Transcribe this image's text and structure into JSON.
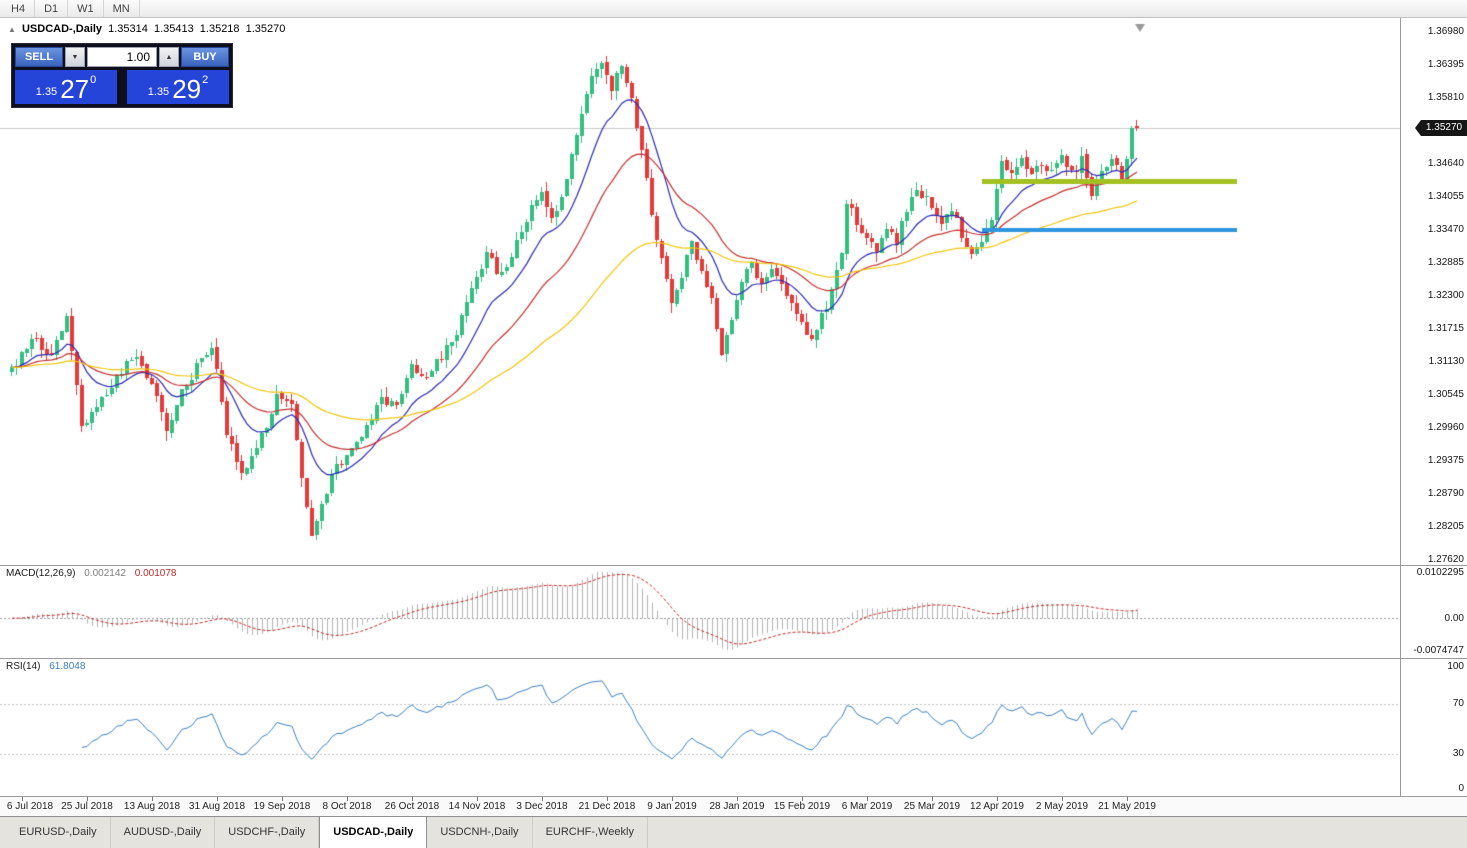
{
  "window": {
    "toolbar_timeframes": [
      "H4",
      "D1",
      "W1",
      "MN"
    ],
    "chart_title": {
      "direction_glyph": "▲",
      "symbol": "USDCAD-,Daily",
      "open": "1.35314",
      "high": "1.35413",
      "low": "1.35218",
      "close": "1.35270"
    },
    "trade_panel": {
      "sell_label": "SELL",
      "buy_label": "BUY",
      "volume": "1.00",
      "volume_down_glyph": "▼",
      "volume_up_glyph": "▲",
      "sell_price": {
        "small": "1.35",
        "big": "27",
        "sup": "0"
      },
      "buy_price": {
        "small": "1.35",
        "big": "29",
        "sup": "2"
      }
    },
    "tabs": [
      {
        "label": "EURUSD-,Daily",
        "active": false
      },
      {
        "label": "AUDUSD-,Daily",
        "active": false
      },
      {
        "label": "USDCHF-,Daily",
        "active": false
      },
      {
        "label": "USDCAD-,Daily",
        "active": true
      },
      {
        "label": "USDCNH-,Daily",
        "active": false
      },
      {
        "label": "EURCHF-,Weekly",
        "active": false
      }
    ]
  },
  "chart_data": {
    "type": "candlestick",
    "symbol": "USDCAD-",
    "timeframe": "Daily",
    "price_axis": {
      "labels": [
        "1.36980",
        "1.36395",
        "1.35810",
        "1.35225",
        "1.34640",
        "1.34055",
        "1.33470",
        "1.32885",
        "1.32300",
        "1.31715",
        "1.31130",
        "1.30545",
        "1.29960",
        "1.29375",
        "1.28790",
        "1.28205",
        "1.27620"
      ],
      "top_value": 1.3698,
      "step": 0.00585,
      "current_price": "1.35270"
    },
    "x_axis_dates": [
      "6 Jul 2018",
      "25 Jul 2018",
      "13 Aug 2018",
      "31 Aug 2018",
      "19 Sep 2018",
      "8 Oct 2018",
      "26 Oct 2018",
      "14 Nov 2018",
      "3 Dec 2018",
      "21 Dec 2018",
      "9 Jan 2019",
      "28 Jan 2019",
      "15 Feb 2019",
      "6 Mar 2019",
      "25 Mar 2019",
      "12 Apr 2019",
      "2 May 2019",
      "21 May 2019"
    ],
    "last_quote": {
      "open": 1.35314,
      "high": 1.35413,
      "low": 1.35218,
      "close": 1.3527,
      "bid": 1.3527,
      "ask": 1.35292
    },
    "candle_count": 226,
    "close_path_anchors": [
      [
        0,
        1.3095
      ],
      [
        4,
        1.316
      ],
      [
        8,
        1.3125
      ],
      [
        11,
        1.319
      ],
      [
        14,
        1.3
      ],
      [
        17,
        1.3035
      ],
      [
        20,
        1.307
      ],
      [
        24,
        1.3125
      ],
      [
        28,
        1.308
      ],
      [
        31,
        1.2985
      ],
      [
        34,
        1.306
      ],
      [
        37,
        1.3105
      ],
      [
        40,
        1.3145
      ],
      [
        43,
        1.2985
      ],
      [
        46,
        1.292
      ],
      [
        49,
        1.2955
      ],
      [
        53,
        1.3055
      ],
      [
        56,
        1.3035
      ],
      [
        58,
        1.2905
      ],
      [
        60,
        1.281
      ],
      [
        62,
        1.2855
      ],
      [
        65,
        1.293
      ],
      [
        68,
        1.2955
      ],
      [
        71,
        1.2995
      ],
      [
        74,
        1.305
      ],
      [
        77,
        1.3035
      ],
      [
        80,
        1.311
      ],
      [
        83,
        1.3085
      ],
      [
        86,
        1.3125
      ],
      [
        89,
        1.316
      ],
      [
        92,
        1.324
      ],
      [
        95,
        1.33
      ],
      [
        98,
        1.3265
      ],
      [
        101,
        1.332
      ],
      [
        104,
        1.3385
      ],
      [
        106,
        1.342
      ],
      [
        108,
        1.336
      ],
      [
        110,
        1.34
      ],
      [
        112,
        1.3475
      ],
      [
        114,
        1.355
      ],
      [
        116,
        1.362
      ],
      [
        118,
        1.364
      ],
      [
        120,
        1.36
      ],
      [
        122,
        1.3645
      ],
      [
        124,
        1.358
      ],
      [
        126,
        1.348
      ],
      [
        128,
        1.338
      ],
      [
        130,
        1.329
      ],
      [
        132,
        1.322
      ],
      [
        134,
        1.327
      ],
      [
        136,
        1.332
      ],
      [
        138,
        1.328
      ],
      [
        140,
        1.322
      ],
      [
        142,
        1.313
      ],
      [
        144,
        1.319
      ],
      [
        146,
        1.325
      ],
      [
        148,
        1.329
      ],
      [
        150,
        1.3245
      ],
      [
        152,
        1.328
      ],
      [
        154,
        1.325
      ],
      [
        156,
        1.3225
      ],
      [
        158,
        1.3185
      ],
      [
        160,
        1.315
      ],
      [
        162,
        1.3195
      ],
      [
        164,
        1.3235
      ],
      [
        166,
        1.331
      ],
      [
        167,
        1.34
      ],
      [
        169,
        1.336
      ],
      [
        171,
        1.333
      ],
      [
        173,
        1.3305
      ],
      [
        175,
        1.335
      ],
      [
        177,
        1.333
      ],
      [
        179,
        1.338
      ],
      [
        181,
        1.342
      ],
      [
        184,
        1.339
      ],
      [
        186,
        1.336
      ],
      [
        188,
        1.3385
      ],
      [
        190,
        1.334
      ],
      [
        192,
        1.331
      ],
      [
        194,
        1.333
      ],
      [
        196,
        1.336
      ],
      [
        198,
        1.347
      ],
      [
        200,
        1.3445
      ],
      [
        202,
        1.3475
      ],
      [
        204,
        1.344
      ],
      [
        206,
        1.3465
      ],
      [
        208,
        1.3455
      ],
      [
        210,
        1.348
      ],
      [
        212,
        1.3445
      ],
      [
        214,
        1.347
      ],
      [
        216,
        1.3415
      ],
      [
        218,
        1.345
      ],
      [
        220,
        1.3465
      ],
      [
        222,
        1.344
      ],
      [
        223,
        1.348
      ],
      [
        224,
        1.352
      ],
      [
        225,
        1.3527
      ]
    ],
    "candle_colors": {
      "bull": "#35bd82",
      "bear": "#e23b3b"
    },
    "moving_averages": [
      {
        "period": 12,
        "color": "#2b2bb4"
      },
      {
        "period": 28,
        "color": "#c43131"
      },
      {
        "period": 70,
        "color": "#f0c50c"
      }
    ],
    "objects": [
      {
        "type": "hline",
        "price": 1.3433,
        "from_day": 194,
        "to_day": 245,
        "color": "#a3c120",
        "width": 5
      },
      {
        "type": "hline",
        "price": 1.3347,
        "from_day": 194,
        "to_day": 245,
        "color": "#2e96df",
        "width": 4
      }
    ],
    "bid_line": {
      "price": 1.3527,
      "color": "#c9c9c9"
    },
    "indicators": {
      "macd": {
        "label": "MACD(12,26,9)",
        "value": "0.002142",
        "signal_value": "0.001078",
        "fast": 12,
        "slow": 26,
        "signal_period": 9,
        "axis_max": 0.0102295,
        "axis_min": -0.0074747,
        "axis_labels": [
          "0.0102295",
          "0.00",
          "-0.0074747"
        ],
        "histogram_color": "#b3b3b3",
        "signal_color": "#cc2525"
      },
      "rsi": {
        "label": "RSI(14)",
        "value": "61.8048",
        "period": 14,
        "axis_labels": [
          "100",
          "70",
          "30",
          "0"
        ],
        "levels": [
          70,
          30
        ],
        "line_color": "#3e7fc1"
      }
    }
  }
}
